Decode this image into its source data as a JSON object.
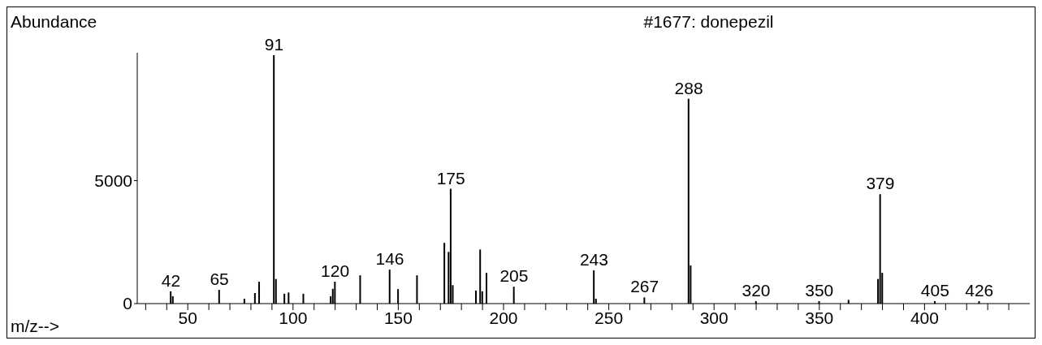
{
  "chart_data": {
    "type": "bar",
    "title": "#1677: donepezil",
    "xlabel": "m/z-->",
    "ylabel": "Abundance",
    "x": [
      42,
      43,
      65,
      77,
      82,
      84,
      91,
      92,
      96,
      98,
      105,
      118,
      119,
      120,
      132,
      146,
      150,
      159,
      172,
      174,
      175,
      176,
      187,
      189,
      190,
      192,
      205,
      243,
      244,
      267,
      288,
      289,
      320,
      350,
      364,
      378,
      379,
      380,
      405,
      426
    ],
    "values": [
      500,
      300,
      560,
      200,
      430,
      890,
      10100,
      1000,
      400,
      450,
      400,
      300,
      600,
      890,
      1150,
      1380,
      590,
      1150,
      2470,
      2100,
      4670,
      750,
      530,
      2200,
      500,
      1250,
      690,
      1350,
      200,
      250,
      8330,
      1550,
      100,
      100,
      150,
      1000,
      4450,
      1250,
      100,
      100
    ],
    "annotations": [
      {
        "text": "42",
        "x": 42,
        "y": 500
      },
      {
        "text": "65",
        "x": 65,
        "y": 560
      },
      {
        "text": "91",
        "x": 91,
        "y": 10100
      },
      {
        "text": "120",
        "x": 120,
        "y": 890
      },
      {
        "text": "146",
        "x": 146,
        "y": 1380
      },
      {
        "text": "175",
        "x": 175,
        "y": 4670
      },
      {
        "text": "205",
        "x": 205,
        "y": 690
      },
      {
        "text": "243",
        "x": 243,
        "y": 1350
      },
      {
        "text": "267",
        "x": 267,
        "y": 250
      },
      {
        "text": "288",
        "x": 288,
        "y": 8330
      },
      {
        "text": "320",
        "x": 320,
        "y": 100
      },
      {
        "text": "350",
        "x": 350,
        "y": 100
      },
      {
        "text": "379",
        "x": 379,
        "y": 4450
      },
      {
        "text": "405",
        "x": 405,
        "y": 100
      },
      {
        "text": "426",
        "x": 426,
        "y": 100
      }
    ],
    "color": "#000000",
    "xlim": [
      26,
      450
    ],
    "xticks": [
      {
        "value": 30,
        "label": null
      },
      {
        "value": 40,
        "label": null
      },
      50,
      {
        "value": 60,
        "label": null
      },
      {
        "value": 70,
        "label": null
      },
      {
        "value": 80,
        "label": null
      },
      {
        "value": 90,
        "label": null
      },
      100,
      {
        "value": 110,
        "label": null
      },
      {
        "value": 120,
        "label": null
      },
      {
        "value": 130,
        "label": null
      },
      {
        "value": 140,
        "label": null
      },
      150,
      {
        "value": 160,
        "label": null
      },
      {
        "value": 170,
        "label": null
      },
      {
        "value": 180,
        "label": null
      },
      {
        "value": 190,
        "label": null
      },
      200,
      {
        "value": 210,
        "label": null
      },
      {
        "value": 220,
        "label": null
      },
      {
        "value": 230,
        "label": null
      },
      {
        "value": 240,
        "label": null
      },
      250,
      {
        "value": 260,
        "label": null
      },
      {
        "value": 270,
        "label": null
      },
      {
        "value": 280,
        "label": null
      },
      {
        "value": 290,
        "label": null
      },
      300,
      {
        "value": 310,
        "label": null
      },
      {
        "value": 320,
        "label": null
      },
      {
        "value": 330,
        "label": null
      },
      {
        "value": 340,
        "label": null
      },
      350,
      {
        "value": 360,
        "label": null
      },
      {
        "value": 370,
        "label": null
      },
      {
        "value": 380,
        "label": null
      },
      {
        "value": 390,
        "label": null
      },
      400,
      {
        "value": 410,
        "label": null
      },
      {
        "value": 420,
        "label": null
      },
      {
        "value": 430,
        "label": null
      },
      {
        "value": 440,
        "label": null
      }
    ],
    "ylim": [
      0,
      10200
    ],
    "yticks": [
      0,
      5000
    ],
    "grid": false,
    "legend": false
  }
}
